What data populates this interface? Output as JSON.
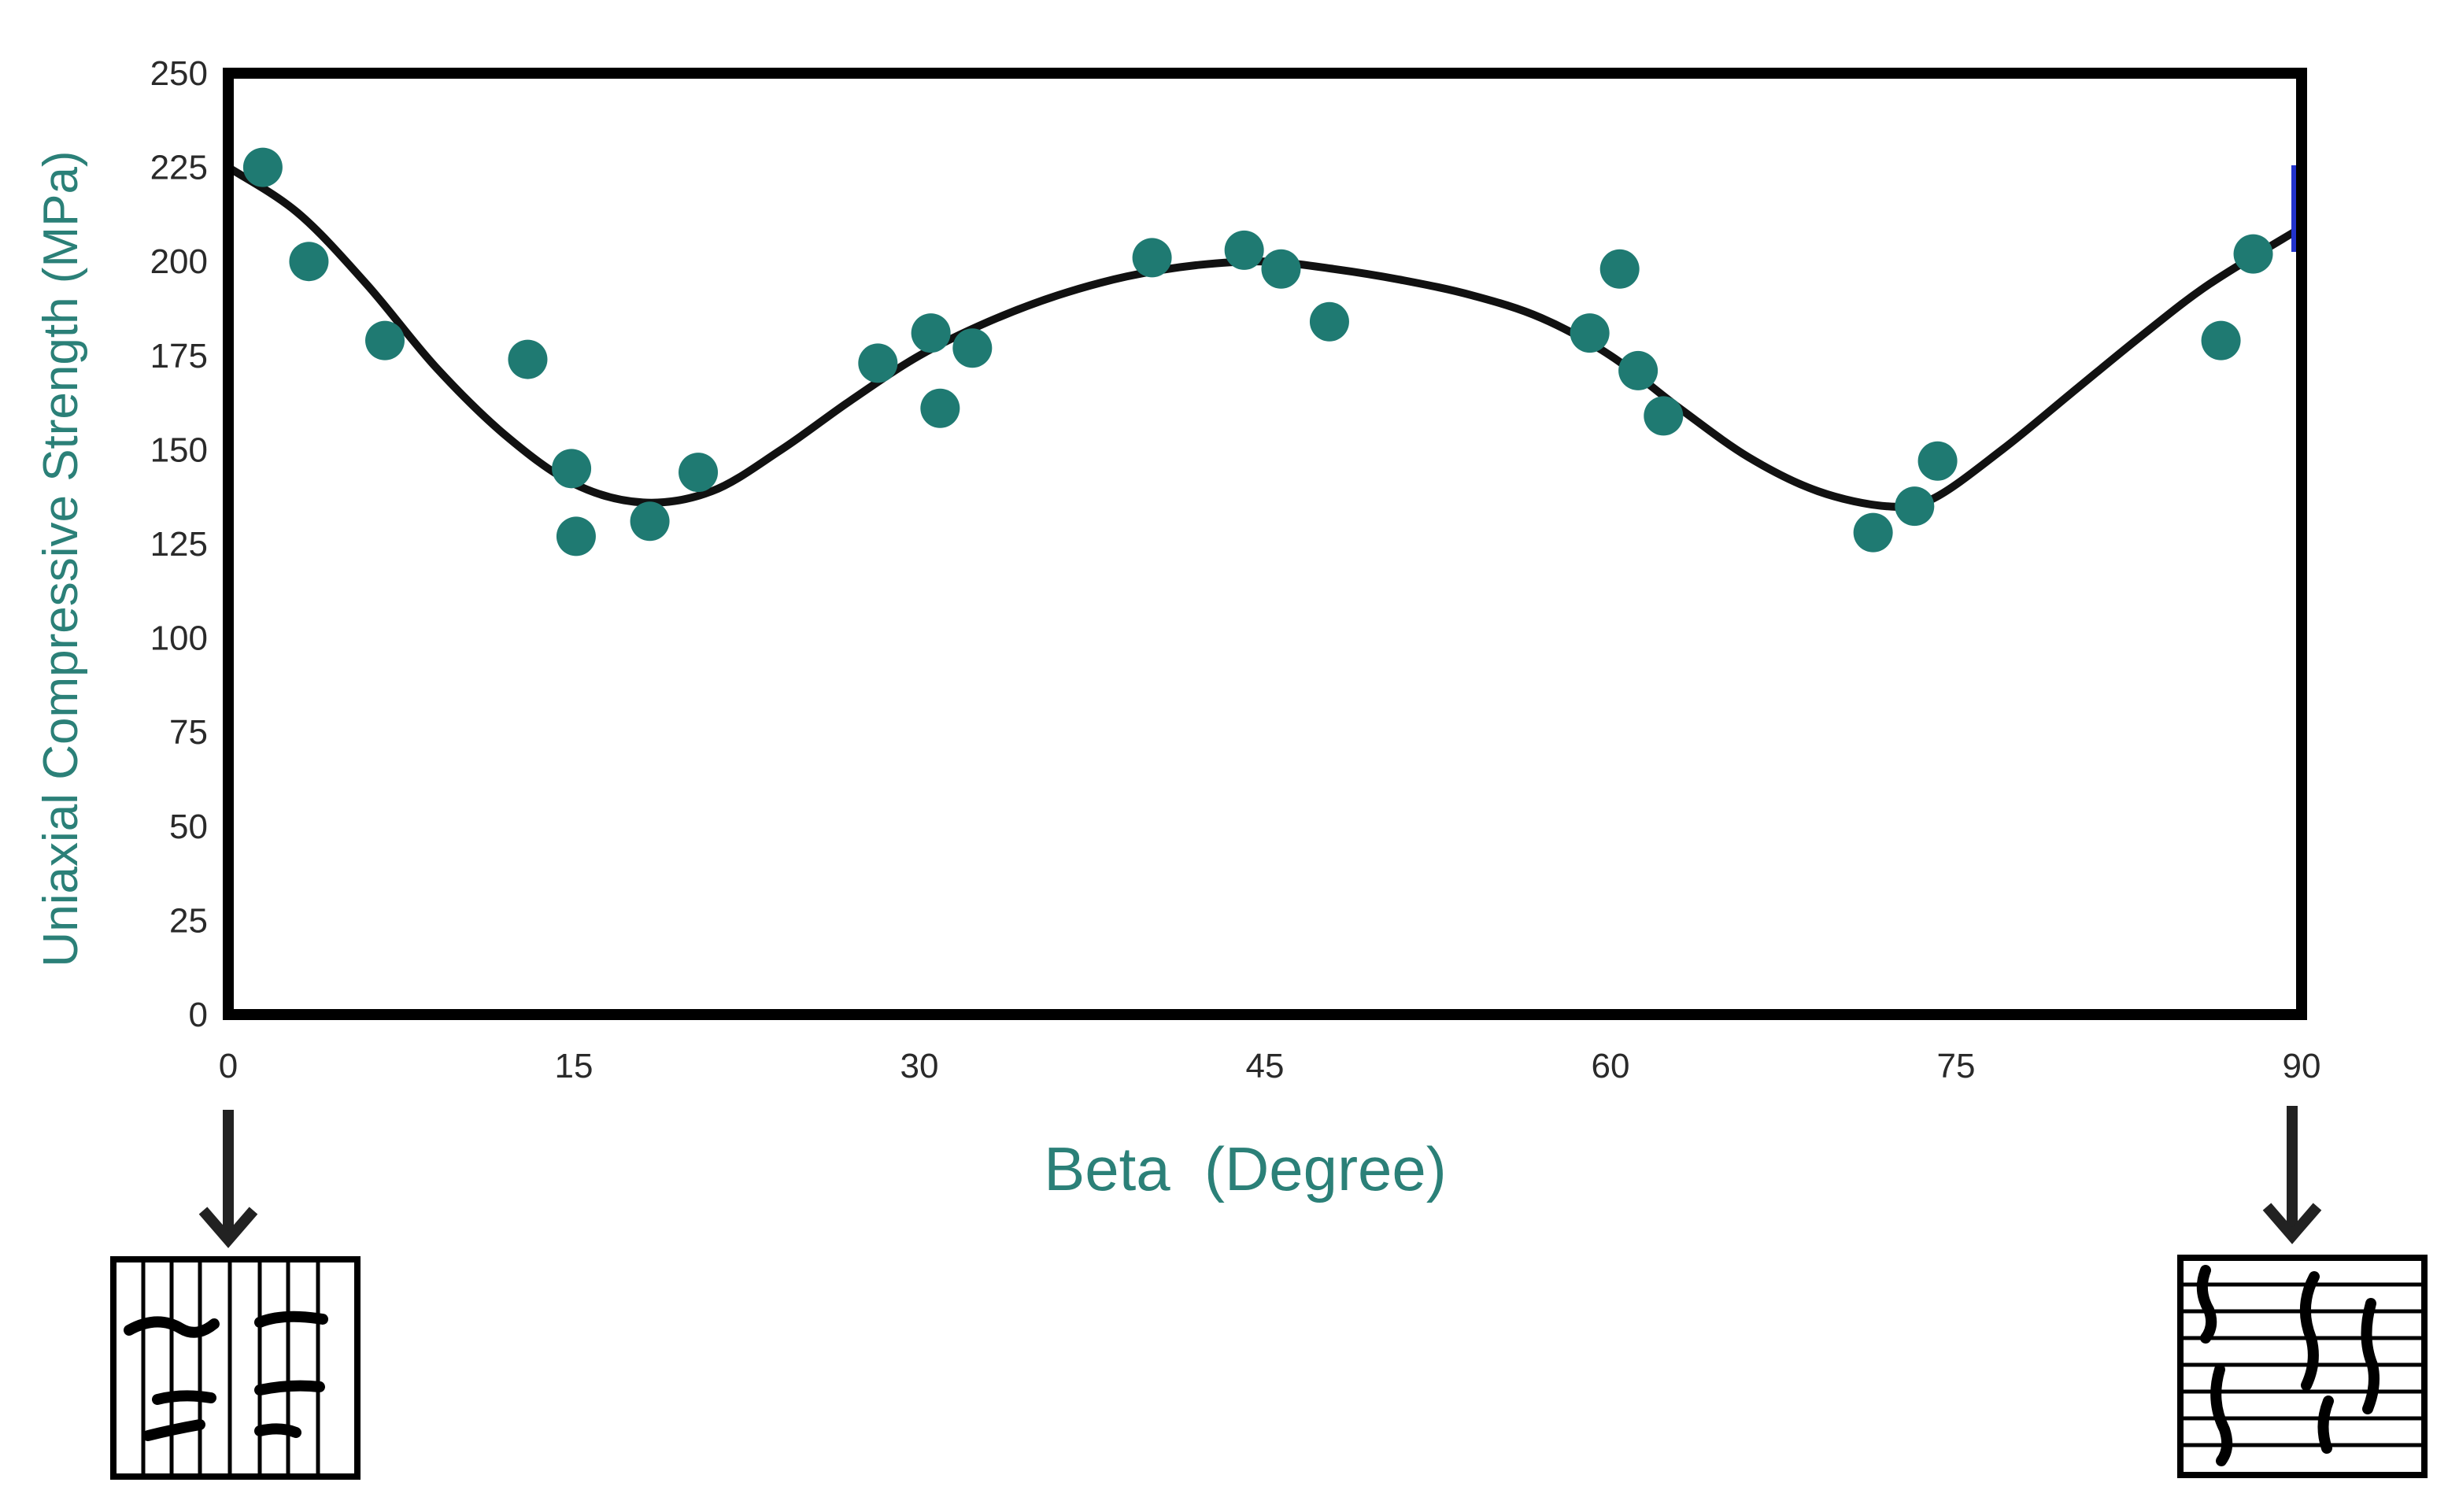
{
  "colors": {
    "accent": "#1f7a72",
    "curve": "#111111",
    "frame": "#000000",
    "axis_title": "#2b8078"
  },
  "chart_data": {
    "type": "scatter",
    "xlabel": "Beta  (Degree)",
    "ylabel": "Uniaxial Compressive Strength (MPa)",
    "xlim": [
      0,
      90
    ],
    "ylim": [
      0,
      250
    ],
    "x_ticks": [
      "0",
      "15",
      "30",
      "45",
      "60",
      "75",
      "90"
    ],
    "y_ticks": [
      "0",
      "25",
      "50",
      "75",
      "100",
      "125",
      "150",
      "175",
      "200",
      "225",
      "250"
    ],
    "grid": false,
    "series": [
      {
        "kind": "scatter",
        "points": [
          [
            1.5,
            225
          ],
          [
            3.5,
            200
          ],
          [
            6.8,
            179
          ],
          [
            13,
            174
          ],
          [
            14.9,
            145
          ],
          [
            15.1,
            127
          ],
          [
            18.3,
            131
          ],
          [
            20.4,
            144
          ],
          [
            28.2,
            173
          ],
          [
            30.5,
            181
          ],
          [
            30.9,
            161
          ],
          [
            32.3,
            177
          ],
          [
            40.1,
            201
          ],
          [
            44.1,
            203
          ],
          [
            45.7,
            198
          ],
          [
            47.8,
            184
          ],
          [
            59.1,
            181
          ],
          [
            60.4,
            198
          ],
          [
            61.2,
            171
          ],
          [
            62.3,
            159
          ],
          [
            71.4,
            128
          ],
          [
            73.2,
            135
          ],
          [
            74.2,
            147
          ],
          [
            86.5,
            179
          ],
          [
            87.9,
            202
          ]
        ]
      },
      {
        "kind": "line",
        "points": [
          [
            0,
            225
          ],
          [
            3,
            213
          ],
          [
            6,
            194
          ],
          [
            9,
            172
          ],
          [
            12,
            154
          ],
          [
            15,
            141
          ],
          [
            18,
            136
          ],
          [
            21,
            139
          ],
          [
            24,
            150
          ],
          [
            27,
            163
          ],
          [
            30,
            175
          ],
          [
            33,
            184
          ],
          [
            36,
            191
          ],
          [
            39,
            196
          ],
          [
            42,
            199
          ],
          [
            45,
            200
          ],
          [
            48,
            198
          ],
          [
            51,
            195
          ],
          [
            54,
            191
          ],
          [
            57,
            185
          ],
          [
            60,
            175
          ],
          [
            63,
            161
          ],
          [
            66,
            148
          ],
          [
            69,
            139
          ],
          [
            72,
            135
          ],
          [
            74,
            137
          ],
          [
            77,
            150
          ],
          [
            80,
            165
          ],
          [
            83,
            180
          ],
          [
            86,
            194
          ],
          [
            90,
            209
          ]
        ]
      }
    ]
  }
}
